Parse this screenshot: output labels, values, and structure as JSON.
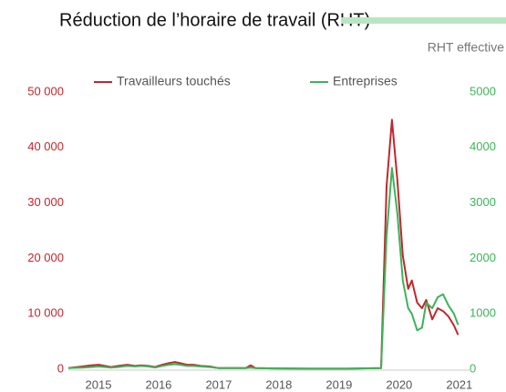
{
  "chart_data": {
    "type": "line",
    "title": "Réduction de l’horaire de travail (RHT)",
    "subtitle": "RHT effective",
    "x": [
      2014.5,
      2014.73,
      2014.88,
      2015.0,
      2015.11,
      2015.21,
      2015.33,
      2015.48,
      2015.61,
      2015.71,
      2015.83,
      2015.94,
      2016.06,
      2016.17,
      2016.27,
      2016.36,
      2016.47,
      2016.58,
      2016.7,
      2016.85,
      2017.0,
      2017.3,
      2017.45,
      2017.53,
      2017.61,
      2017.91,
      2018.52,
      2019.12,
      2019.7,
      2019.79,
      2019.88,
      2019.97,
      2020.06,
      2020.15,
      2020.21,
      2020.3,
      2020.38,
      2020.45,
      2020.55,
      2020.64,
      2020.73,
      2020.82,
      2020.91,
      2020.98
    ],
    "series": [
      {
        "name": "Travailleurs touchés",
        "color": "#c0272d",
        "values": [
          200,
          500,
          700,
          800,
          600,
          400,
          600,
          800,
          600,
          700,
          600,
          400,
          800,
          1100,
          1300,
          1100,
          800,
          800,
          600,
          500,
          200,
          200,
          200,
          700,
          200,
          150,
          100,
          100,
          200,
          33000,
          45000,
          34000,
          20500,
          14500,
          16000,
          12000,
          11000,
          12500,
          9000,
          11000,
          10500,
          9500,
          7900,
          6200
        ]
      },
      {
        "name": "Entreprises",
        "color": "#3cb35a",
        "axis": "y2",
        "values": [
          20,
          30,
          40,
          50,
          40,
          30,
          40,
          60,
          50,
          60,
          50,
          30,
          60,
          80,
          90,
          80,
          60,
          60,
          50,
          40,
          20,
          20,
          20,
          30,
          20,
          15,
          10,
          10,
          20,
          2400,
          3630,
          2800,
          1600,
          1100,
          1000,
          700,
          750,
          1200,
          1100,
          1300,
          1350,
          1150,
          1000,
          800
        ]
      }
    ],
    "xlim": [
      2014.5,
      2021.2
    ],
    "xticks": [
      2015,
      2016,
      2017,
      2018,
      2019,
      2020,
      2021
    ],
    "ylim": [
      0,
      50000
    ],
    "yticks": [
      {
        "value": 0,
        "label": "0"
      },
      {
        "value": 10000,
        "label": "10 000"
      },
      {
        "value": 20000,
        "label": "20 000"
      },
      {
        "value": 30000,
        "label": "30 000"
      },
      {
        "value": 40000,
        "label": "40 000"
      },
      {
        "value": 50000,
        "label": "50 000"
      }
    ],
    "y2lim": [
      0,
      5000
    ],
    "y2ticks": [
      0,
      1000,
      2000,
      3000,
      4000,
      5000
    ],
    "grid": false
  }
}
